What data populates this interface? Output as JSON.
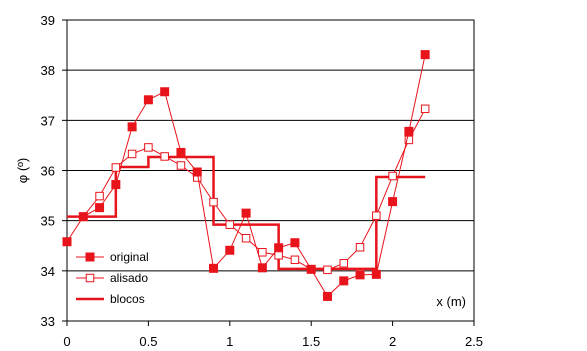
{
  "chart_data": {
    "type": "line",
    "title": "",
    "xlabel": "x (m)",
    "ylabel": "φ (º)",
    "xlim": [
      0,
      2.5
    ],
    "ylim": [
      33,
      39
    ],
    "xticks": [
      "0",
      "0.5",
      "1",
      "1.5",
      "2",
      "2.5"
    ],
    "yticks": [
      "33",
      "34",
      "35",
      "36",
      "37",
      "38",
      "39"
    ],
    "grid": "horizontal",
    "legend_position": "bottom-left",
    "color": "#e8141b",
    "series": [
      {
        "name": "original",
        "marker": "filled-square",
        "x": [
          0,
          0.1,
          0.2,
          0.3,
          0.4,
          0.5,
          0.6,
          0.7,
          0.8,
          0.9,
          1.0,
          1.1,
          1.2,
          1.3,
          1.4,
          1.5,
          1.6,
          1.7,
          1.8,
          1.9,
          2.0,
          2.1,
          2.2
        ],
        "y": [
          34.58,
          35.08,
          35.26,
          35.72,
          36.87,
          37.41,
          37.57,
          36.36,
          35.97,
          34.05,
          34.41,
          35.15,
          34.06,
          34.46,
          34.56,
          34.03,
          33.49,
          33.8,
          33.92,
          33.93,
          35.38,
          36.78,
          38.31
        ]
      },
      {
        "name": "alisado",
        "marker": "open-square",
        "x": [
          0.1,
          0.2,
          0.3,
          0.4,
          0.5,
          0.6,
          0.7,
          0.8,
          0.9,
          1.0,
          1.1,
          1.2,
          1.3,
          1.4,
          1.5,
          1.6,
          1.7,
          1.8,
          1.9,
          2.0,
          2.1,
          2.2
        ],
        "y": [
          35.08,
          35.49,
          36.06,
          36.33,
          36.46,
          36.28,
          36.1,
          35.86,
          35.37,
          34.92,
          34.65,
          34.37,
          34.31,
          34.22,
          34.03,
          34.02,
          34.15,
          34.47,
          35.1,
          35.89,
          36.61,
          37.23
        ]
      },
      {
        "name": "blocos",
        "marker": "none",
        "step": true,
        "x": [
          0,
          0.3,
          0.3,
          0.5,
          0.5,
          0.9,
          0.9,
          1.3,
          1.3,
          1.9,
          1.9,
          2.2
        ],
        "y": [
          35.08,
          35.08,
          36.07,
          36.07,
          36.27,
          36.27,
          34.92,
          34.92,
          34.04,
          34.04,
          35.87,
          35.87
        ]
      }
    ]
  }
}
